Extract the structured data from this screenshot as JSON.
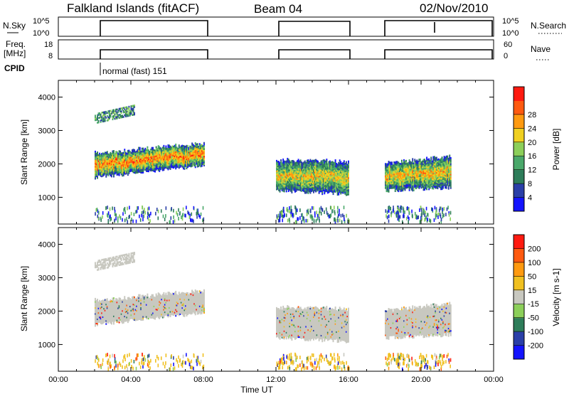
{
  "header": {
    "station": "Falkland Islands (fitACF)",
    "beam": "Beam 04",
    "date": "02/Nov/2010"
  },
  "aux_panels": {
    "nsky_label": "N.Sky",
    "nsky_ticks": [
      "10^5",
      "10^0"
    ],
    "nsearch_label": "N.Search",
    "nsearch_ticks": [
      "10^5",
      "10^0"
    ],
    "freq_label_line1": "Freq.",
    "freq_label_line2": "[MHz]",
    "freq_ticks": [
      "18",
      "8"
    ],
    "nave_label": "Nave",
    "nave_ticks": [
      "60",
      "0"
    ],
    "cpid_label": "CPID",
    "cpid_text": "normal (fast) 151"
  },
  "colors": {
    "power": [
      "#1414ff",
      "#2a3fa8",
      "#2e7d5a",
      "#4aa86a",
      "#8ccf5a",
      "#f0d020",
      "#ff9a10",
      "#ff5a10",
      "#ff1a10"
    ],
    "velocity": [
      "#ff1a10",
      "#ff5a10",
      "#ff9a10",
      "#f0c020",
      "#c8c8c0",
      "#8ccf5a",
      "#2e7d5a",
      "#2a3fa8",
      "#1414ff"
    ],
    "ground_scatter": "#c8c8c0"
  },
  "chart_data": [
    {
      "type": "heatmap",
      "name": "power",
      "ylabel": "Slant Range [km]",
      "colorbar_label": "Power [dB]",
      "colorbar_ticks": [
        "4",
        "8",
        "12",
        "16",
        "20",
        "24",
        "28"
      ],
      "ylim": [
        200,
        4500
      ],
      "y_ticks": [
        "1000",
        "2000",
        "3000",
        "4000"
      ],
      "x_ticks": [
        "00:00",
        "04:00",
        "08:00",
        "12:00",
        "16:00",
        "20:00",
        "00:00"
      ],
      "xlim_hours": [
        0,
        24
      ],
      "blocks": [
        {
          "t0": 2.0,
          "t1": 8.0,
          "r0a": 1600,
          "r0b": 1950,
          "r1a": 2300,
          "r1b": 2600,
          "core": 0.75
        },
        {
          "t0": 12.0,
          "t1": 16.0,
          "r0a": 1200,
          "r0b": 1100,
          "r1a": 2100,
          "r1b": 2050,
          "core": 0.55
        },
        {
          "t0": 18.0,
          "t1": 21.6,
          "r0a": 1200,
          "r0b": 1300,
          "r1a": 2000,
          "r1b": 2200,
          "core": 0.6
        }
      ]
    },
    {
      "type": "heatmap",
      "name": "velocity",
      "ylabel": "Slant Range [km]",
      "colorbar_label": "Velocity [m s-1]",
      "colorbar_ticks": [
        "200",
        "100",
        "50",
        "15",
        "-15",
        "-50",
        "-100",
        "-200"
      ],
      "ylim": [
        200,
        4500
      ],
      "y_ticks": [
        "1000",
        "2000",
        "3000",
        "4000"
      ],
      "x_ticks": [
        "00:00",
        "04:00",
        "08:00",
        "12:00",
        "16:00",
        "20:00",
        "00:00"
      ],
      "xlabel": "Time UT",
      "xlim_hours": [
        0,
        24
      ]
    }
  ]
}
